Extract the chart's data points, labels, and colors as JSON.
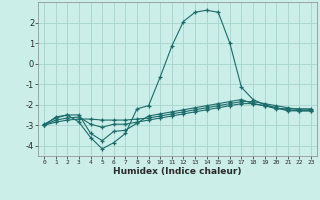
{
  "x": [
    0,
    1,
    2,
    3,
    4,
    5,
    6,
    7,
    8,
    9,
    10,
    11,
    12,
    13,
    14,
    15,
    16,
    17,
    18,
    19,
    20,
    21,
    22,
    23
  ],
  "line1": [
    -3.0,
    -2.6,
    -2.5,
    -2.85,
    -3.6,
    -4.15,
    -3.85,
    -3.4,
    -2.2,
    -2.05,
    -0.65,
    0.85,
    2.05,
    2.5,
    2.6,
    2.5,
    1.0,
    -1.15,
    -1.75,
    -2.0,
    -2.15,
    -2.3,
    -2.3,
    -2.3
  ],
  "line2": [
    -2.95,
    -2.65,
    -2.5,
    -2.5,
    -3.4,
    -3.75,
    -3.3,
    -3.25,
    -2.9,
    -2.55,
    -2.45,
    -2.35,
    -2.25,
    -2.15,
    -2.05,
    -1.95,
    -1.85,
    -1.75,
    -1.95,
    -2.05,
    -2.2,
    -2.2,
    -2.2,
    -2.2
  ],
  "line3": [
    -3.0,
    -2.75,
    -2.65,
    -2.6,
    -2.95,
    -3.1,
    -2.95,
    -2.95,
    -2.85,
    -2.75,
    -2.65,
    -2.55,
    -2.45,
    -2.35,
    -2.25,
    -2.15,
    -2.05,
    -1.95,
    -1.95,
    -2.05,
    -2.15,
    -2.25,
    -2.3,
    -2.3
  ],
  "line4": [
    -3.0,
    -2.85,
    -2.75,
    -2.7,
    -2.7,
    -2.75,
    -2.75,
    -2.75,
    -2.7,
    -2.65,
    -2.55,
    -2.45,
    -2.35,
    -2.25,
    -2.15,
    -2.05,
    -1.95,
    -1.85,
    -1.85,
    -1.95,
    -2.05,
    -2.15,
    -2.25,
    -2.25
  ],
  "line_color": "#1a6b6b",
  "bg_color": "#cceee8",
  "grid_color": "#aad8d0",
  "xlabel": "Humidex (Indice chaleur)",
  "xlim": [
    -0.5,
    23.5
  ],
  "ylim": [
    -4.5,
    3.0
  ],
  "yticks": [
    -4,
    -3,
    -2,
    -1,
    0,
    1,
    2
  ],
  "xticks": [
    0,
    1,
    2,
    3,
    4,
    5,
    6,
    7,
    8,
    9,
    10,
    11,
    12,
    13,
    14,
    15,
    16,
    17,
    18,
    19,
    20,
    21,
    22,
    23
  ]
}
